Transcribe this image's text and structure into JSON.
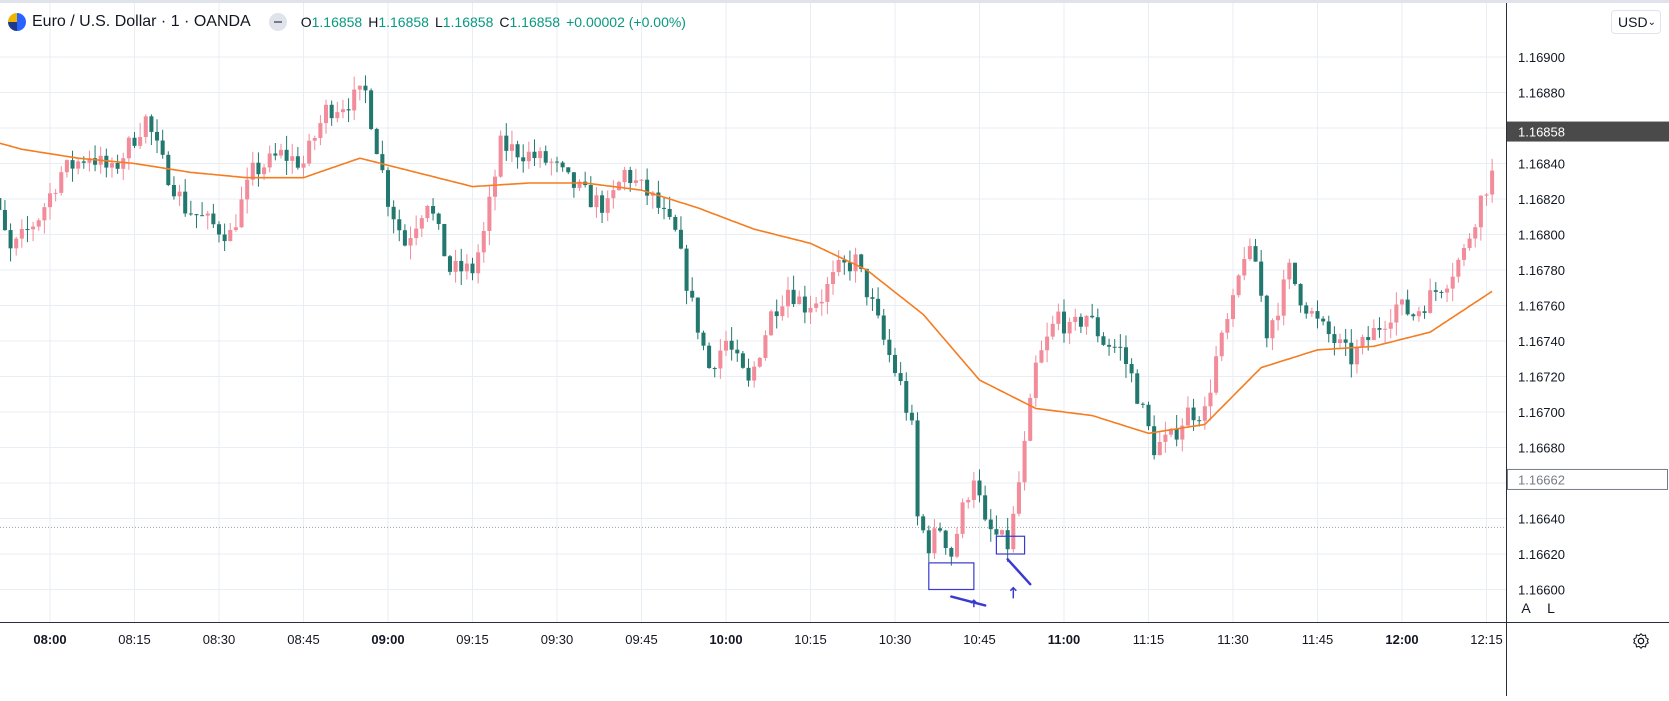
{
  "header": {
    "title": "Euro / U.S. Dollar · 1 · OANDA",
    "ohlc": {
      "o_label": "O",
      "o": "1.16858",
      "h_label": "H",
      "h": "1.16858",
      "l_label": "L",
      "l": "1.16858",
      "c_label": "C",
      "c": "1.16858",
      "change": "+0.00002 (+0.00%)"
    }
  },
  "toolbar": {
    "currency": "USD",
    "auto_label": "A",
    "log_label": "L"
  },
  "colors": {
    "up": "#f28b9a",
    "down": "#22786e",
    "ma": "#f57c1f",
    "grid": "#e9eef4",
    "annotation": "#3a3ad0",
    "price_tag": "#4a4a4a"
  },
  "chart_data": {
    "type": "candlestick",
    "symbol": "EURUSD",
    "interval": "1",
    "y_ticks": [
      "1.16900",
      "1.16880",
      "1.16860",
      "1.16840",
      "1.16820",
      "1.16800",
      "1.16780",
      "1.16760",
      "1.16740",
      "1.16720",
      "1.16700",
      "1.16680",
      "1.16660",
      "1.16640",
      "1.16620",
      "1.16600"
    ],
    "x_ticks": [
      {
        "label": "08:00",
        "t": "08:00",
        "bold": true
      },
      {
        "label": "08:15",
        "t": "08:15"
      },
      {
        "label": "08:30",
        "t": "08:30"
      },
      {
        "label": "08:45",
        "t": "08:45"
      },
      {
        "label": "09:00",
        "t": "09:00",
        "bold": true
      },
      {
        "label": "09:15",
        "t": "09:15"
      },
      {
        "label": "09:30",
        "t": "09:30"
      },
      {
        "label": "09:45",
        "t": "09:45"
      },
      {
        "label": "10:00",
        "t": "10:00",
        "bold": true
      },
      {
        "label": "10:15",
        "t": "10:15"
      },
      {
        "label": "10:30",
        "t": "10:30"
      },
      {
        "label": "10:45",
        "t": "10:45"
      },
      {
        "label": "11:00",
        "t": "11:00",
        "bold": true
      },
      {
        "label": "11:15",
        "t": "11:15"
      },
      {
        "label": "11:30",
        "t": "11:30"
      },
      {
        "label": "11:45",
        "t": "11:45"
      },
      {
        "label": "12:00",
        "t": "12:00",
        "bold": true
      },
      {
        "label": "12:15",
        "t": "12:15"
      }
    ],
    "last_price": "1.16858",
    "crosshair_price": "1.16662",
    "dotted_line_price": 1.16635,
    "first_time": "07:47",
    "close_anchors": [
      {
        "t": "07:47",
        "c": 1.1685
      },
      {
        "t": "07:50",
        "c": 1.1682
      },
      {
        "t": "07:53",
        "c": 1.1679
      },
      {
        "t": "07:58",
        "c": 1.1681
      },
      {
        "t": "08:02",
        "c": 1.16835
      },
      {
        "t": "08:07",
        "c": 1.16845
      },
      {
        "t": "08:11",
        "c": 1.16835
      },
      {
        "t": "08:17",
        "c": 1.16865
      },
      {
        "t": "08:20",
        "c": 1.1684
      },
      {
        "t": "08:24",
        "c": 1.16815
      },
      {
        "t": "08:29",
        "c": 1.16805
      },
      {
        "t": "08:32",
        "c": 1.168
      },
      {
        "t": "08:36",
        "c": 1.16835
      },
      {
        "t": "08:41",
        "c": 1.16845
      },
      {
        "t": "08:45",
        "c": 1.1684
      },
      {
        "t": "08:49",
        "c": 1.1687
      },
      {
        "t": "08:53",
        "c": 1.16875
      },
      {
        "t": "08:56",
        "c": 1.1688
      },
      {
        "t": "08:58",
        "c": 1.1685
      },
      {
        "t": "09:00",
        "c": 1.1682
      },
      {
        "t": "09:03",
        "c": 1.16795
      },
      {
        "t": "09:07",
        "c": 1.1682
      },
      {
        "t": "09:11",
        "c": 1.1678
      },
      {
        "t": "09:15",
        "c": 1.1678
      },
      {
        "t": "09:17",
        "c": 1.168
      },
      {
        "t": "09:20",
        "c": 1.1685
      },
      {
        "t": "09:25",
        "c": 1.16845
      },
      {
        "t": "09:29",
        "c": 1.1684
      },
      {
        "t": "09:32",
        "c": 1.1683
      },
      {
        "t": "09:36",
        "c": 1.1682
      },
      {
        "t": "09:39",
        "c": 1.16815
      },
      {
        "t": "09:42",
        "c": 1.16835
      },
      {
        "t": "09:47",
        "c": 1.1682
      },
      {
        "t": "09:51",
        "c": 1.168
      },
      {
        "t": "09:54",
        "c": 1.1676
      },
      {
        "t": "09:57",
        "c": 1.16725
      },
      {
        "t": "10:00",
        "c": 1.1674
      },
      {
        "t": "10:04",
        "c": 1.16715
      },
      {
        "t": "10:08",
        "c": 1.16755
      },
      {
        "t": "10:11",
        "c": 1.1677
      },
      {
        "t": "10:14",
        "c": 1.1676
      },
      {
        "t": "10:17",
        "c": 1.16765
      },
      {
        "t": "10:20",
        "c": 1.1678
      },
      {
        "t": "10:23",
        "c": 1.16785
      },
      {
        "t": "10:26",
        "c": 1.1676
      },
      {
        "t": "10:28",
        "c": 1.1674
      },
      {
        "t": "10:31",
        "c": 1.16715
      },
      {
        "t": "10:33",
        "c": 1.1669
      },
      {
        "t": "10:34",
        "c": 1.1664
      },
      {
        "t": "10:36",
        "c": 1.16625
      },
      {
        "t": "10:38",
        "c": 1.16635
      },
      {
        "t": "10:40",
        "c": 1.1662
      },
      {
        "t": "10:42",
        "c": 1.16645
      },
      {
        "t": "10:44",
        "c": 1.16665
      },
      {
        "t": "10:46",
        "c": 1.16635
      },
      {
        "t": "10:48",
        "c": 1.1663
      },
      {
        "t": "10:50",
        "c": 1.16625
      },
      {
        "t": "10:51",
        "c": 1.1664
      },
      {
        "t": "10:53",
        "c": 1.1668
      },
      {
        "t": "10:55",
        "c": 1.16725
      },
      {
        "t": "10:57",
        "c": 1.1674
      },
      {
        "t": "10:59",
        "c": 1.16755
      },
      {
        "t": "11:01",
        "c": 1.16745
      },
      {
        "t": "11:04",
        "c": 1.16755
      },
      {
        "t": "11:07",
        "c": 1.1674
      },
      {
        "t": "11:10",
        "c": 1.16735
      },
      {
        "t": "11:12",
        "c": 1.1672
      },
      {
        "t": "11:14",
        "c": 1.167
      },
      {
        "t": "11:16",
        "c": 1.1668
      },
      {
        "t": "11:19",
        "c": 1.16685
      },
      {
        "t": "11:22",
        "c": 1.167
      },
      {
        "t": "11:25",
        "c": 1.167
      },
      {
        "t": "11:27",
        "c": 1.1673
      },
      {
        "t": "11:30",
        "c": 1.1676
      },
      {
        "t": "11:32",
        "c": 1.1679
      },
      {
        "t": "11:34",
        "c": 1.16785
      },
      {
        "t": "11:36",
        "c": 1.16745
      },
      {
        "t": "11:38",
        "c": 1.1676
      },
      {
        "t": "11:40",
        "c": 1.1678
      },
      {
        "t": "11:42",
        "c": 1.16765
      },
      {
        "t": "11:45",
        "c": 1.1675
      },
      {
        "t": "11:48",
        "c": 1.1674
      },
      {
        "t": "11:51",
        "c": 1.1673
      },
      {
        "t": "11:55",
        "c": 1.16745
      },
      {
        "t": "11:59",
        "c": 1.1676
      },
      {
        "t": "12:02",
        "c": 1.16755
      },
      {
        "t": "12:05",
        "c": 1.16765
      },
      {
        "t": "12:08",
        "c": 1.16775
      },
      {
        "t": "12:11",
        "c": 1.1679
      },
      {
        "t": "12:14",
        "c": 1.1682
      },
      {
        "t": "12:16",
        "c": 1.16835
      }
    ],
    "ma_anchors": [
      {
        "t": "07:47",
        "v": 1.16855
      },
      {
        "t": "07:55",
        "v": 1.16848
      },
      {
        "t": "08:05",
        "v": 1.16843
      },
      {
        "t": "08:15",
        "v": 1.1684
      },
      {
        "t": "08:25",
        "v": 1.16835
      },
      {
        "t": "08:35",
        "v": 1.16832
      },
      {
        "t": "08:45",
        "v": 1.16832
      },
      {
        "t": "08:55",
        "v": 1.16843
      },
      {
        "t": "09:05",
        "v": 1.16835
      },
      {
        "t": "09:15",
        "v": 1.16827
      },
      {
        "t": "09:25",
        "v": 1.16829
      },
      {
        "t": "09:35",
        "v": 1.16829
      },
      {
        "t": "09:45",
        "v": 1.16825
      },
      {
        "t": "09:55",
        "v": 1.16815
      },
      {
        "t": "10:05",
        "v": 1.16803
      },
      {
        "t": "10:15",
        "v": 1.16795
      },
      {
        "t": "10:25",
        "v": 1.1678
      },
      {
        "t": "10:35",
        "v": 1.16755
      },
      {
        "t": "10:45",
        "v": 1.16718
      },
      {
        "t": "10:55",
        "v": 1.16702
      },
      {
        "t": "11:05",
        "v": 1.16698
      },
      {
        "t": "11:15",
        "v": 1.16688
      },
      {
        "t": "11:25",
        "v": 1.16693
      },
      {
        "t": "11:35",
        "v": 1.16725
      },
      {
        "t": "11:45",
        "v": 1.16735
      },
      {
        "t": "11:55",
        "v": 1.16737
      },
      {
        "t": "12:05",
        "v": 1.16745
      },
      {
        "t": "12:16",
        "v": 1.16768
      }
    ],
    "annotations": [
      {
        "type": "rectangle",
        "t1": "10:36",
        "t2": "10:44",
        "p1": 1.16615,
        "p2": 1.166
      },
      {
        "type": "rectangle",
        "t1": "10:48",
        "t2": "10:53",
        "p1": 1.1663,
        "p2": 1.1662
      },
      {
        "type": "line",
        "t1": "10:40",
        "p1": 1.16596,
        "t2": "10:46",
        "p2": 1.16591
      },
      {
        "type": "line",
        "t1": "10:50",
        "p1": 1.16617,
        "t2": "10:54",
        "p2": 1.16603
      },
      {
        "type": "arrow",
        "t": "10:44",
        "p1": 1.1659,
        "p2": 1.16594
      },
      {
        "type": "arrow",
        "t": "10:51",
        "p1": 1.16595,
        "p2": 1.16601
      }
    ]
  }
}
